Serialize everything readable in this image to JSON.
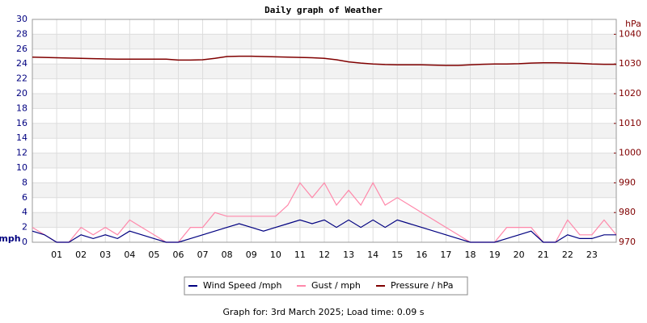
{
  "chart_data": {
    "type": "line",
    "title": "Daily graph of Weather",
    "y_label": "mph",
    "y2_label": "hPa",
    "footer": "Graph for: 3rd March 2025; Load time: 0.09 s",
    "x": [
      0,
      0.5,
      1,
      1.5,
      2,
      2.5,
      3,
      3.5,
      4,
      4.5,
      5,
      5.5,
      6,
      6.5,
      7,
      7.5,
      8,
      8.5,
      9,
      9.5,
      10,
      10.5,
      11,
      11.5,
      12,
      12.5,
      13,
      13.5,
      14,
      14.5,
      15,
      15.5,
      16,
      16.5,
      17,
      17.5,
      18,
      18.5,
      19,
      19.5,
      20,
      20.5,
      21,
      21.5,
      22,
      22.5,
      23,
      23.5,
      24
    ],
    "xlim": [
      0,
      24
    ],
    "xticks": [
      {
        "value": 1,
        "label": "01"
      },
      {
        "value": 2,
        "label": "02"
      },
      {
        "value": 3,
        "label": "03"
      },
      {
        "value": 4,
        "label": "04"
      },
      {
        "value": 5,
        "label": "05"
      },
      {
        "value": 6,
        "label": "06"
      },
      {
        "value": 7,
        "label": "07"
      },
      {
        "value": 8,
        "label": "08"
      },
      {
        "value": 9,
        "label": "09"
      },
      {
        "value": 10,
        "label": "10"
      },
      {
        "value": 11,
        "label": "11"
      },
      {
        "value": 12,
        "label": "12"
      },
      {
        "value": 13,
        "label": "13"
      },
      {
        "value": 14,
        "label": "14"
      },
      {
        "value": 15,
        "label": "15"
      },
      {
        "value": 16,
        "label": "16"
      },
      {
        "value": 17,
        "label": "17"
      },
      {
        "value": 18,
        "label": "18"
      },
      {
        "value": 19,
        "label": "19"
      },
      {
        "value": 20,
        "label": "20"
      },
      {
        "value": 21,
        "label": "21"
      },
      {
        "value": 22,
        "label": "22"
      },
      {
        "value": 23,
        "label": "23"
      }
    ],
    "ylim": [
      0,
      30
    ],
    "yticks": [
      0,
      2,
      4,
      6,
      8,
      10,
      12,
      14,
      16,
      18,
      20,
      22,
      24,
      26,
      28,
      30
    ],
    "y2lim": [
      970,
      1045
    ],
    "y2ticks": [
      970,
      980,
      990,
      1000,
      1010,
      1020,
      1030,
      1040
    ],
    "grid": true,
    "series": [
      {
        "name": "Gust / mph",
        "color": "#ff88aa",
        "values": [
          2,
          1,
          0,
          0,
          2,
          1,
          2,
          1,
          3,
          2,
          1,
          0,
          0,
          2,
          2,
          4,
          3.5,
          3.5,
          3.5,
          3.5,
          3.5,
          5,
          8,
          6,
          8,
          5,
          7,
          5,
          8,
          5,
          6,
          5,
          4,
          3,
          2,
          1,
          0,
          0,
          0,
          2,
          2,
          2,
          0,
          0,
          3,
          1,
          1,
          3,
          1
        ]
      },
      {
        "name": "Wind Speed /mph",
        "color": "#000080",
        "values": [
          1.5,
          1,
          0,
          0,
          1,
          0.5,
          1,
          0.5,
          1.5,
          1,
          0.5,
          0,
          0,
          0.5,
          1,
          1.5,
          2,
          2.5,
          2,
          1.5,
          2,
          2.5,
          3,
          2.5,
          3,
          2,
          3,
          2,
          3,
          2,
          3,
          2.5,
          2,
          1.5,
          1,
          0.5,
          0,
          0,
          0,
          0.5,
          1,
          1.5,
          0,
          0,
          1,
          0.5,
          0.5,
          1,
          1
        ]
      },
      {
        "name": "Pressure / hPa",
        "color": "#800000",
        "axis": "y2",
        "values": [
          1032.3,
          1032.2,
          1032.1,
          1032.0,
          1031.9,
          1031.8,
          1031.7,
          1031.6,
          1031.6,
          1031.6,
          1031.6,
          1031.6,
          1031.3,
          1031.3,
          1031.4,
          1031.9,
          1032.5,
          1032.6,
          1032.6,
          1032.5,
          1032.4,
          1032.3,
          1032.2,
          1032.1,
          1031.9,
          1031.4,
          1030.7,
          1030.3,
          1030.0,
          1029.8,
          1029.7,
          1029.7,
          1029.7,
          1029.6,
          1029.5,
          1029.5,
          1029.7,
          1029.9,
          1030.0,
          1030.0,
          1030.1,
          1030.3,
          1030.4,
          1030.4,
          1030.3,
          1030.2,
          1030.0,
          1029.9,
          1029.9
        ]
      }
    ],
    "legend_order": [
      1,
      0,
      2
    ]
  }
}
